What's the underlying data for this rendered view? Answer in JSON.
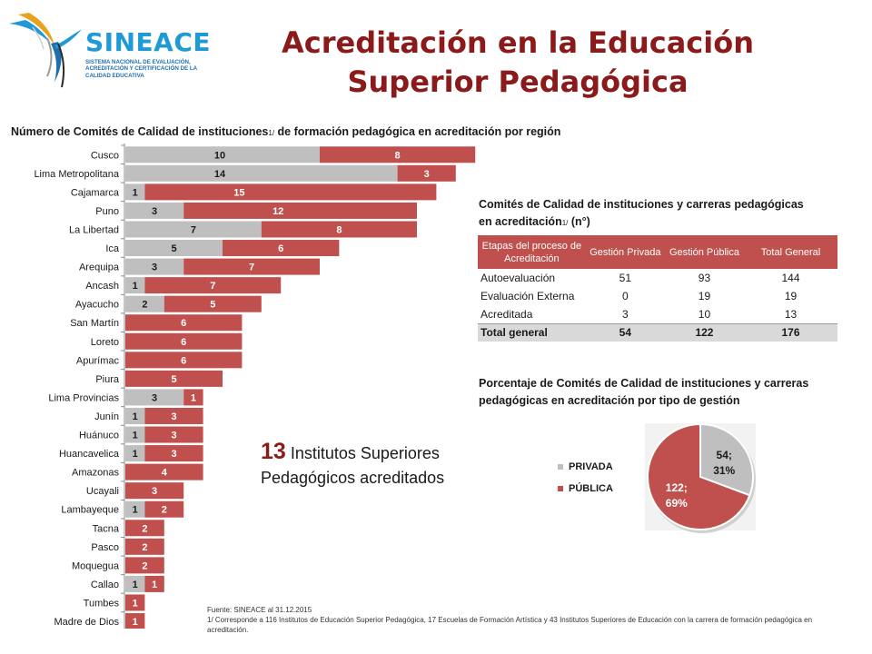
{
  "logo": {
    "name": "SINEACE",
    "tagline": "SISTEMA NACIONAL DE EVALUACIÓN, ACREDITACIÓN Y CERTIFICACIÓN DE LA CALIDAD EDUCATIVA"
  },
  "title": {
    "line1": "Acreditación en la Educación",
    "line2": "Superior Pedagógica"
  },
  "bar_chart_title": {
    "main": "Número de Comités de Calidad de instituciones",
    "note": "1/",
    "rest": " de formación pedagógica en acreditación por región"
  },
  "colors": {
    "privada": "#bfbfbf",
    "publica": "#c0504d",
    "title_red": "#8b1a1a",
    "logo_blue": "#1f9ad6"
  },
  "chart_data": [
    {
      "type": "bar",
      "orientation": "horizontal",
      "stacked": true,
      "categories": [
        "Cusco",
        "Lima Metropolitana",
        "Cajamarca",
        "Puno",
        "La Libertad",
        "Ica",
        "Arequipa",
        "Ancash",
        "Ayacucho",
        "San Martín",
        "Loreto",
        "Apurímac",
        "Piura",
        "Lima Provincias",
        "Junín",
        "Huánuco",
        "Huancavelica",
        "Amazonas",
        "Ucayali",
        "Lambayeque",
        "Tacna",
        "Pasco",
        "Moquegua",
        "Callao",
        "Tumbes",
        "Madre de Dios"
      ],
      "series": [
        {
          "name": "PRIVADA",
          "color": "#bfbfbf",
          "values": [
            10,
            14,
            1,
            3,
            7,
            5,
            3,
            1,
            2,
            0,
            0,
            0,
            0,
            3,
            1,
            1,
            1,
            0,
            0,
            1,
            0,
            0,
            0,
            1,
            0,
            0
          ]
        },
        {
          "name": "PÚBLICA",
          "color": "#c0504d",
          "values": [
            8,
            3,
            15,
            12,
            8,
            6,
            7,
            7,
            5,
            6,
            6,
            6,
            5,
            1,
            3,
            3,
            3,
            4,
            3,
            2,
            2,
            2,
            2,
            1,
            1,
            1
          ]
        }
      ]
    },
    {
      "type": "pie",
      "labels": [
        "PRIVADA",
        "PÚBLICA"
      ],
      "values": [
        54,
        122
      ],
      "percent_labels": [
        "54;\n31%",
        "122;\n69%"
      ],
      "colors": [
        "#bfbfbf",
        "#c0504d"
      ],
      "legend_position": "left"
    }
  ],
  "table": {
    "title": {
      "line1": "Comités de Calidad de  instituciones y carreras pedagógicas",
      "line2_main": "en acreditación",
      "line2_note": "1/",
      "line2_rest": "  (n°)"
    },
    "headers": [
      "Etapas del proceso de Acreditación",
      "Gestión Privada",
      "Gestión Pública",
      "Total General"
    ],
    "rows": [
      [
        "Autoevaluación",
        "51",
        "93",
        "144"
      ],
      [
        "Evaluación Externa",
        "0",
        "19",
        "19"
      ],
      [
        "Acreditada",
        "3",
        "10",
        "13"
      ]
    ],
    "total": [
      "Total general",
      "54",
      "122",
      "176"
    ]
  },
  "pie_title": "Porcentaje de Comités de Calidad de instituciones y carreras pedagógicas en acreditación por tipo de gestión",
  "highlight": {
    "number": "13",
    "line1": "Institutos Superiores",
    "line2": "Pedagógicos acreditados"
  },
  "footnote": {
    "source": "Fuente: SINEACE al  31.12.2015",
    "note": "1/ Corresponde a 116 Institutos de Educación Superior Pedagógica, 17 Escuelas de Formación Artística y 43 Institutos Superiores de Educación con la carrera de formación pedagógica en acreditación."
  }
}
